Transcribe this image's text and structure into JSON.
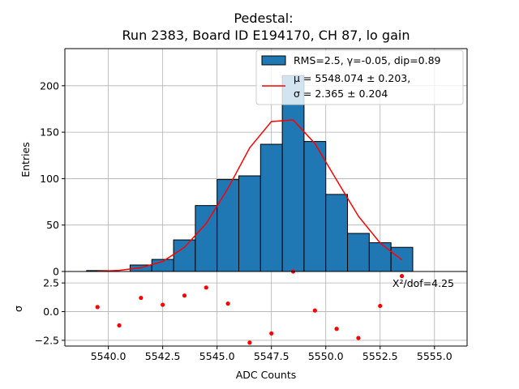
{
  "chart_data": {
    "type": "histogram",
    "title_line1": "Pedestal:",
    "title_line2": "Run 2383, Board ID E194170, CH 87, lo gain",
    "xlabel": "ADC Counts",
    "ylabel_top": "Entries",
    "ylabel_bottom": "σ",
    "xlim": [
      5538.0,
      5556.5
    ],
    "ylim_top": [
      0,
      240
    ],
    "ylim_bottom": [
      -3.0,
      3.5
    ],
    "xticks": [
      5540.0,
      5542.5,
      5545.0,
      5547.5,
      5550.0,
      5552.5,
      5555.0
    ],
    "xtick_labels": [
      "5540.0",
      "5542.5",
      "5545.0",
      "5547.5",
      "5550.0",
      "5552.5",
      "5555.0"
    ],
    "yticks_top": [
      0,
      50,
      100,
      150,
      200
    ],
    "ytick_labels_top": [
      "0",
      "50",
      "100",
      "150",
      "200"
    ],
    "yticks_bottom": [
      -2.5,
      0.0,
      2.5
    ],
    "ytick_labels_bottom": [
      "−2.5",
      "0.0",
      "2.5"
    ],
    "grid": true,
    "bin_width": 1.0,
    "bins": [
      {
        "left": 5539,
        "count": 1
      },
      {
        "left": 5540,
        "count": 0
      },
      {
        "left": 5541,
        "count": 7
      },
      {
        "left": 5542,
        "count": 13
      },
      {
        "left": 5543,
        "count": 34
      },
      {
        "left": 5544,
        "count": 71
      },
      {
        "left": 5545,
        "count": 99
      },
      {
        "left": 5546,
        "count": 103
      },
      {
        "left": 5547,
        "count": 137
      },
      {
        "left": 5548,
        "count": 211
      },
      {
        "left": 5549,
        "count": 140
      },
      {
        "left": 5550,
        "count": 83
      },
      {
        "left": 5551,
        "count": 41
      },
      {
        "left": 5552,
        "count": 31
      },
      {
        "left": 5553,
        "count": 26
      }
    ],
    "fit_curve": {
      "x": [
        5539.5,
        5540.5,
        5541.5,
        5542.5,
        5543.5,
        5544.5,
        5545.5,
        5546.5,
        5547.5,
        5548.5,
        5549.5,
        5550.5,
        5551.5,
        5552.5,
        5553.5
      ],
      "y": [
        0.2,
        1.2,
        4.1,
        10.8,
        26.0,
        51.7,
        89.4,
        133.2,
        161.5,
        163.2,
        137.8,
        98.4,
        59.6,
        30.7,
        12.5
      ]
    },
    "residuals": {
      "x": [
        5539.5,
        5540.5,
        5541.5,
        5542.5,
        5543.5,
        5544.5,
        5545.5,
        5546.5,
        5547.5,
        5548.5,
        5549.5,
        5550.5,
        5551.5,
        5552.5,
        5553.5
      ],
      "y": [
        0.4,
        -1.2,
        1.2,
        0.6,
        1.4,
        2.1,
        0.7,
        -2.7,
        -1.9,
        3.5,
        0.1,
        -1.5,
        -2.3,
        0.5,
        3.1
      ]
    },
    "legend": {
      "location": "upper right",
      "hist_label": "RMS=2.5, γ=-0.05, dip=0.89",
      "fit_label_line1": "μ = 5548.074 ± 0.203,",
      "fit_label_line2": "σ = 2.365 ± 0.204"
    },
    "stat_annotation": "X²/dof=4.25",
    "colors": {
      "bar_fill": "#1f77b4",
      "bar_edge": "#000000",
      "fit_line": "#ff0000",
      "residual_points": "#ff0000",
      "grid": "#b0b0b0"
    }
  }
}
